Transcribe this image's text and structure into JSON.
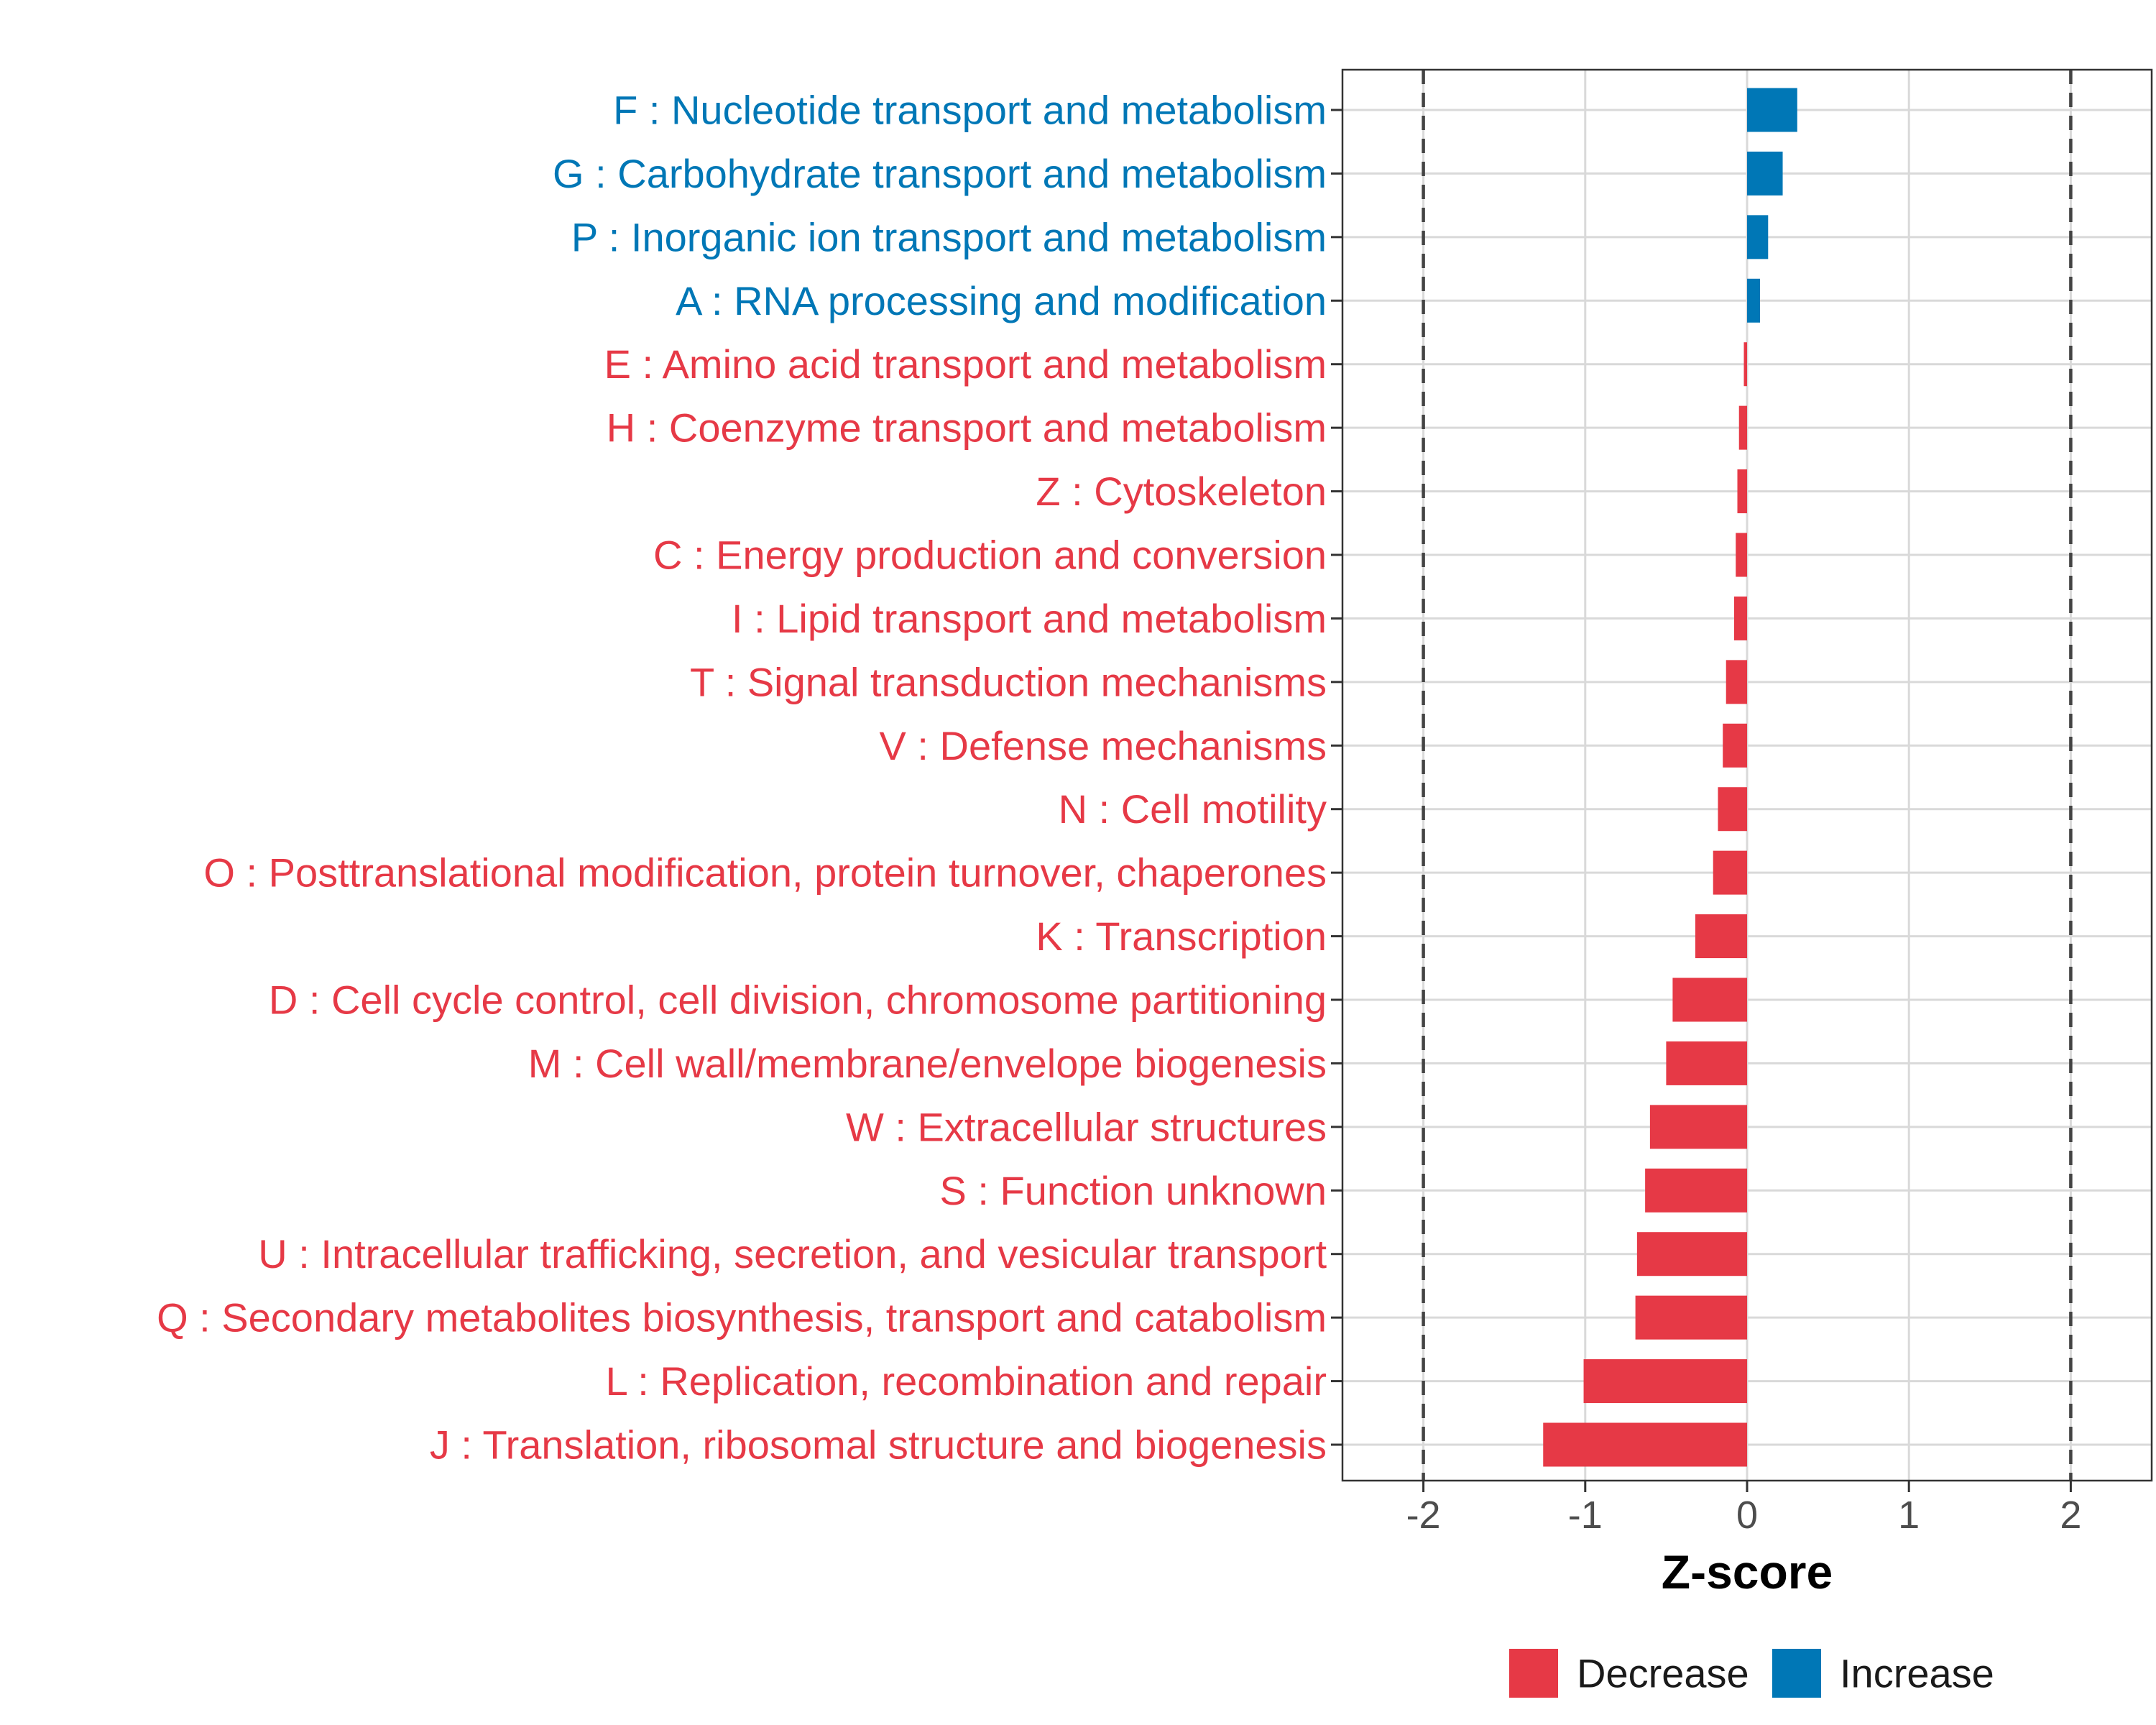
{
  "chart_data": {
    "type": "bar",
    "orientation": "horizontal",
    "title": "",
    "xlabel": "Z-score",
    "ylabel": "",
    "xlim": [
      -2.5,
      2.5
    ],
    "xticks": [
      -2,
      -1,
      0,
      1,
      2
    ],
    "xtick_labels": [
      "-2",
      "-1",
      "0",
      "1",
      "2"
    ],
    "reference_lines": [
      -2,
      2
    ],
    "grid": true,
    "colors": {
      "Decrease": "#E63946",
      "Increase": "#0077B6"
    },
    "categories": [
      "F : Nucleotide transport and metabolism",
      "G : Carbohydrate transport and metabolism",
      "P : Inorganic ion transport and metabolism",
      "A : RNA processing and modification",
      "E : Amino acid transport and metabolism",
      "H : Coenzyme transport and metabolism",
      "Z : Cytoskeleton",
      "C : Energy production and conversion",
      "I : Lipid transport and metabolism",
      "T : Signal transduction mechanisms",
      "V : Defense mechanisms",
      "N : Cell motility",
      "O : Posttranslational modification, protein turnover, chaperones",
      "K : Transcription",
      "D : Cell cycle control, cell division, chromosome partitioning",
      "M : Cell wall/membrane/envelope biogenesis",
      "W : Extracellular structures",
      "S : Function unknown",
      "U : Intracellular trafficking, secretion, and vesicular transport",
      "Q : Secondary metabolites biosynthesis, transport and catabolism",
      "L : Replication, recombination and repair",
      "J : Translation, ribosomal structure and biogenesis"
    ],
    "values": [
      0.31,
      0.22,
      0.13,
      0.08,
      -0.02,
      -0.05,
      -0.06,
      -0.07,
      -0.08,
      -0.13,
      -0.15,
      -0.18,
      -0.21,
      -0.32,
      -0.46,
      -0.5,
      -0.6,
      -0.63,
      -0.68,
      -0.69,
      -1.01,
      -1.26
    ],
    "groups": [
      "Increase",
      "Increase",
      "Increase",
      "Increase",
      "Decrease",
      "Decrease",
      "Decrease",
      "Decrease",
      "Decrease",
      "Decrease",
      "Decrease",
      "Decrease",
      "Decrease",
      "Decrease",
      "Decrease",
      "Decrease",
      "Decrease",
      "Decrease",
      "Decrease",
      "Decrease",
      "Decrease",
      "Decrease"
    ],
    "legend": {
      "position": "bottom",
      "entries": [
        {
          "label": "Decrease",
          "color": "#E63946"
        },
        {
          "label": "Increase",
          "color": "#0077B6"
        }
      ]
    }
  }
}
